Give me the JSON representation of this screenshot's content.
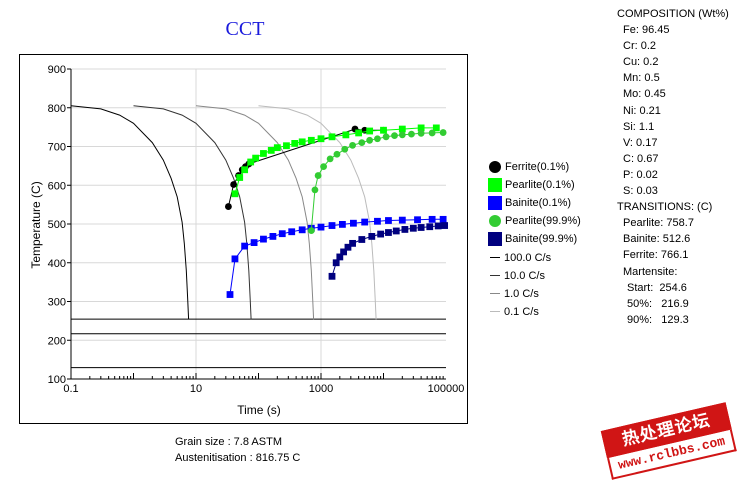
{
  "chart_data": {
    "type": "line",
    "title": "CCT",
    "xlabel": "Time (s)",
    "ylabel": "Temperature (C)",
    "x_scale": "log",
    "xlim": [
      0.1,
      100000
    ],
    "ylim": [
      100,
      900
    ],
    "x_ticks": [
      "0.1",
      "10",
      "1000",
      "100000"
    ],
    "y_ticks": [
      "100",
      "200",
      "300",
      "400",
      "500",
      "600",
      "700",
      "800",
      "900"
    ],
    "grid": true,
    "legend_position": "right",
    "cooling_curves": [
      {
        "name": "100.0 C/s",
        "color": "#000000",
        "points": [
          [
            0.1,
            805
          ],
          [
            0.3,
            797
          ],
          [
            0.6,
            781
          ],
          [
            1,
            760
          ],
          [
            2,
            710
          ],
          [
            3,
            665
          ],
          [
            4,
            618
          ],
          [
            5,
            570
          ],
          [
            6,
            505
          ],
          [
            6.5,
            450
          ],
          [
            7,
            380
          ],
          [
            7.4,
            300
          ],
          [
            7.6,
            254
          ]
        ]
      },
      {
        "name": "10.0 C/s",
        "color": "#333333",
        "points": [
          [
            1,
            805
          ],
          [
            3,
            797
          ],
          [
            6,
            781
          ],
          [
            10,
            760
          ],
          [
            20,
            710
          ],
          [
            30,
            665
          ],
          [
            40,
            618
          ],
          [
            50,
            570
          ],
          [
            60,
            505
          ],
          [
            65,
            450
          ],
          [
            70,
            380
          ],
          [
            74,
            300
          ],
          [
            76,
            254
          ]
        ]
      },
      {
        "name": "1.0 C/s",
        "color": "#888888",
        "points": [
          [
            10,
            805
          ],
          [
            30,
            797
          ],
          [
            60,
            781
          ],
          [
            100,
            760
          ],
          [
            200,
            710
          ],
          [
            300,
            665
          ],
          [
            400,
            618
          ],
          [
            500,
            570
          ],
          [
            600,
            505
          ],
          [
            650,
            450
          ],
          [
            700,
            380
          ],
          [
            740,
            300
          ],
          [
            760,
            254
          ]
        ]
      },
      {
        "name": "0.1 C/s",
        "color": "#bbbbbb",
        "points": [
          [
            100,
            805
          ],
          [
            300,
            797
          ],
          [
            600,
            781
          ],
          [
            1000,
            760
          ],
          [
            2000,
            710
          ],
          [
            3000,
            665
          ],
          [
            4000,
            618
          ],
          [
            5000,
            570
          ],
          [
            6000,
            505
          ],
          [
            6500,
            450
          ],
          [
            7000,
            380
          ],
          [
            7400,
            300
          ],
          [
            7600,
            254
          ]
        ]
      }
    ],
    "series": [
      {
        "name": "Ferrite(0.1%)",
        "marker": "circle",
        "color": "#000000",
        "points": [
          [
            33,
            545
          ],
          [
            40,
            602
          ],
          [
            48,
            625
          ],
          [
            55,
            640
          ],
          [
            62,
            648
          ],
          [
            70,
            655
          ],
          [
            3500,
            745
          ],
          [
            5000,
            742
          ],
          [
            10000,
            742
          ]
        ]
      },
      {
        "name": "Pearlite(0.1%)",
        "marker": "square",
        "color": "#00ff00",
        "points": [
          [
            42,
            578
          ],
          [
            50,
            620
          ],
          [
            60,
            640
          ],
          [
            75,
            660
          ],
          [
            90,
            670
          ],
          [
            120,
            682
          ],
          [
            160,
            690
          ],
          [
            200,
            697
          ],
          [
            280,
            702
          ],
          [
            380,
            708
          ],
          [
            500,
            712
          ],
          [
            700,
            716
          ],
          [
            1000,
            720
          ],
          [
            1500,
            725
          ],
          [
            2500,
            730
          ],
          [
            4000,
            735
          ],
          [
            6000,
            740
          ],
          [
            10000,
            742
          ],
          [
            20000,
            745
          ],
          [
            40000,
            748
          ],
          [
            70000,
            748
          ]
        ]
      },
      {
        "name": "Bainite(0.1%)",
        "marker": "square",
        "color": "#0000ff",
        "points": [
          [
            35,
            318
          ],
          [
            42,
            410
          ],
          [
            60,
            443
          ],
          [
            85,
            452
          ],
          [
            120,
            461
          ],
          [
            170,
            468
          ],
          [
            240,
            475
          ],
          [
            340,
            480
          ],
          [
            500,
            485
          ],
          [
            700,
            489
          ],
          [
            1000,
            492
          ],
          [
            1500,
            496
          ],
          [
            2200,
            499
          ],
          [
            3300,
            502
          ],
          [
            5000,
            505
          ],
          [
            8000,
            507
          ],
          [
            12000,
            509
          ],
          [
            20000,
            510
          ],
          [
            35000,
            511
          ],
          [
            60000,
            512
          ],
          [
            90000,
            512
          ]
        ]
      },
      {
        "name": "Pearlite(99.9%)",
        "marker": "circle",
        "color": "#33cc33",
        "points": [
          [
            700,
            483
          ],
          [
            800,
            588
          ],
          [
            900,
            625
          ],
          [
            1100,
            648
          ],
          [
            1400,
            668
          ],
          [
            1800,
            680
          ],
          [
            2400,
            693
          ],
          [
            3200,
            703
          ],
          [
            4500,
            710
          ],
          [
            6000,
            716
          ],
          [
            8000,
            720
          ],
          [
            11000,
            725
          ],
          [
            15000,
            728
          ],
          [
            20000,
            730
          ],
          [
            28000,
            732
          ],
          [
            40000,
            734
          ],
          [
            60000,
            735
          ],
          [
            90000,
            736
          ]
        ]
      },
      {
        "name": "Bainite(99.9%)",
        "marker": "square",
        "color": "#00007f",
        "points": [
          [
            1500,
            365
          ],
          [
            1750,
            400
          ],
          [
            2000,
            415
          ],
          [
            2300,
            428
          ],
          [
            2700,
            440
          ],
          [
            3200,
            450
          ],
          [
            4500,
            460
          ],
          [
            6500,
            468
          ],
          [
            9000,
            474
          ],
          [
            12000,
            478
          ],
          [
            16000,
            482
          ],
          [
            22000,
            486
          ],
          [
            30000,
            489
          ],
          [
            40000,
            491
          ],
          [
            55000,
            493
          ],
          [
            75000,
            495
          ],
          [
            95000,
            496
          ]
        ]
      }
    ],
    "horizontal_lines": [
      {
        "label": "Martensite Start",
        "value": 254.6
      },
      {
        "label": "Martensite 50%",
        "value": 216.9
      },
      {
        "label": "Martensite 90%",
        "value": 129.3
      }
    ]
  },
  "composition": {
    "title": "COMPOSITION (Wt%)",
    "lines": [
      "Fe: 96.45",
      "Cr: 0.2",
      "Cu: 0.2",
      "Mn: 0.5",
      "Mo: 0.45",
      "Ni: 0.21",
      "Si: 1.1",
      "V: 0.17",
      "C: 0.67",
      "P: 0.02",
      "S: 0.03"
    ],
    "transitions_title": "TRANSITIONS: (C)",
    "transitions": [
      "Pearlite: 758.7",
      "Bainite: 512.6",
      "Ferrite: 766.1"
    ],
    "martensite_title": "Martensite:",
    "martensite": [
      "Start:  254.6",
      "50%:   216.9",
      "90%:   129.3"
    ]
  },
  "footer": {
    "grain_size": "Grain size : 7.8 ASTM",
    "austenitisation": "Austenitisation : 816.75 C"
  },
  "watermark": {
    "top": "热处理论坛",
    "bottom": "www.rclbbs.com"
  }
}
